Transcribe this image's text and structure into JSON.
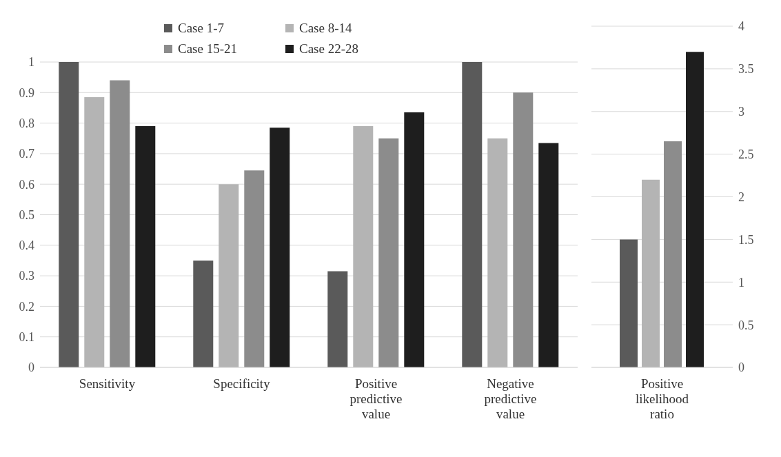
{
  "chart_data": [
    {
      "type": "bar",
      "categories": [
        "Sensitivity",
        "Specificity",
        "Positive predictive value",
        "Negative predictive value"
      ],
      "series": [
        {
          "name": "Case 1-7",
          "color": "#5a5a5a",
          "values": [
            1.0,
            0.35,
            0.315,
            1.0
          ]
        },
        {
          "name": "Case 8-14",
          "color": "#b4b4b4",
          "values": [
            0.885,
            0.6,
            0.79,
            0.75
          ]
        },
        {
          "name": "Case 15-21",
          "color": "#8c8c8c",
          "values": [
            0.94,
            0.645,
            0.75,
            0.9
          ]
        },
        {
          "name": "Case 22-28",
          "color": "#1e1e1e",
          "values": [
            0.79,
            0.785,
            0.835,
            0.735
          ]
        }
      ],
      "ylim": [
        0,
        1
      ],
      "yticks": [
        0,
        0.1,
        0.2,
        0.3,
        0.4,
        0.5,
        0.6,
        0.7,
        0.8,
        0.9,
        1
      ],
      "grid": "y",
      "legend": "top"
    },
    {
      "type": "bar",
      "categories": [
        "Positive likelihood ratio"
      ],
      "series": [
        {
          "color": "#5a5a5a",
          "values": [
            1.5
          ],
          "axis": "y2"
        },
        {
          "color": "#b4b4b4",
          "values": [
            2.2
          ],
          "axis": "y2"
        },
        {
          "color": "#8c8c8c",
          "values": [
            2.65
          ],
          "axis": "y2"
        },
        {
          "color": "#1e1e1e",
          "values": [
            3.7
          ],
          "axis": "y2"
        }
      ],
      "y2lim": [
        0,
        4
      ],
      "y2ticks": [
        0,
        0.5,
        1,
        1.5,
        2,
        2.5,
        3,
        3.5,
        4
      ],
      "grid": "y"
    }
  ]
}
